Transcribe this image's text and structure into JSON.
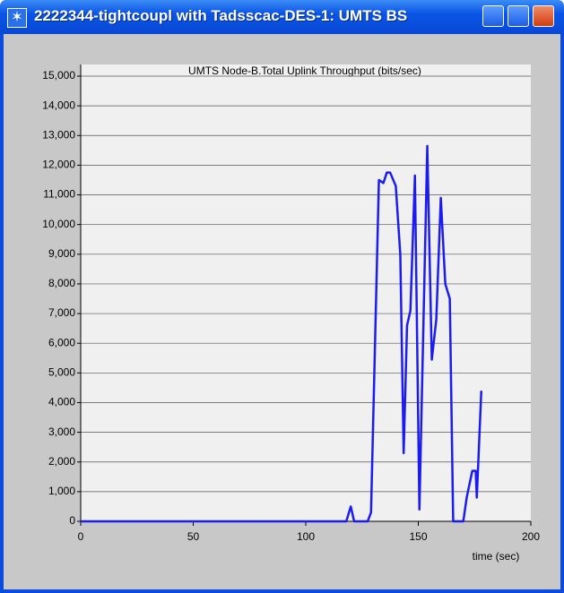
{
  "window": {
    "title": "2222344-tightcoupl with Tadsscac-DES-1: UMTS BS"
  },
  "chart_data": {
    "type": "line",
    "title": "UMTS Node-B.Total Uplink Throughput (bits/sec)",
    "x_label": "time (sec)",
    "x": [
      0,
      118,
      120,
      121.5,
      127.5,
      129,
      132.5,
      134.5,
      136,
      137.5,
      140,
      142,
      143.5,
      145,
      146.5,
      148.5,
      150.5,
      154,
      156,
      158,
      160,
      162,
      164,
      165.5,
      170,
      171.5,
      174,
      175.5,
      176,
      178
    ],
    "series": [
      {
        "name": "Total Uplink Throughput",
        "color": "#1c1cf0",
        "values": [
          0,
          0,
          500,
          0,
          0,
          300,
          11500,
          11400,
          11750,
          11750,
          11300,
          9000,
          2300,
          6600,
          7100,
          11650,
          400,
          12650,
          5450,
          6800,
          10900,
          8000,
          7500,
          0,
          0,
          800,
          1700,
          1700,
          800,
          4400
        ]
      }
    ],
    "xlim": [
      0,
      200
    ],
    "xticks": [
      0,
      50,
      100,
      150,
      200
    ],
    "ylim": [
      0,
      15000
    ],
    "yticks": [
      0,
      {
        "value": 1000,
        "label": "1,000"
      },
      {
        "value": 2000,
        "label": "2,000"
      },
      {
        "value": 3000,
        "label": "3,000"
      },
      {
        "value": 4000,
        "label": "4,000"
      },
      {
        "value": 5000,
        "label": "5,000"
      },
      {
        "value": 6000,
        "label": "6,000"
      },
      {
        "value": 7000,
        "label": "7,000"
      },
      {
        "value": 8000,
        "label": "8,000"
      },
      {
        "value": 9000,
        "label": "9,000"
      },
      {
        "value": 10000,
        "label": "10,000"
      },
      {
        "value": 11000,
        "label": "11,000"
      },
      {
        "value": 12000,
        "label": "12,000"
      },
      {
        "value": 13000,
        "label": "13,000"
      },
      {
        "value": 14000,
        "label": "14,000"
      },
      {
        "value": 15000,
        "label": "15,000"
      }
    ],
    "grid": true
  }
}
